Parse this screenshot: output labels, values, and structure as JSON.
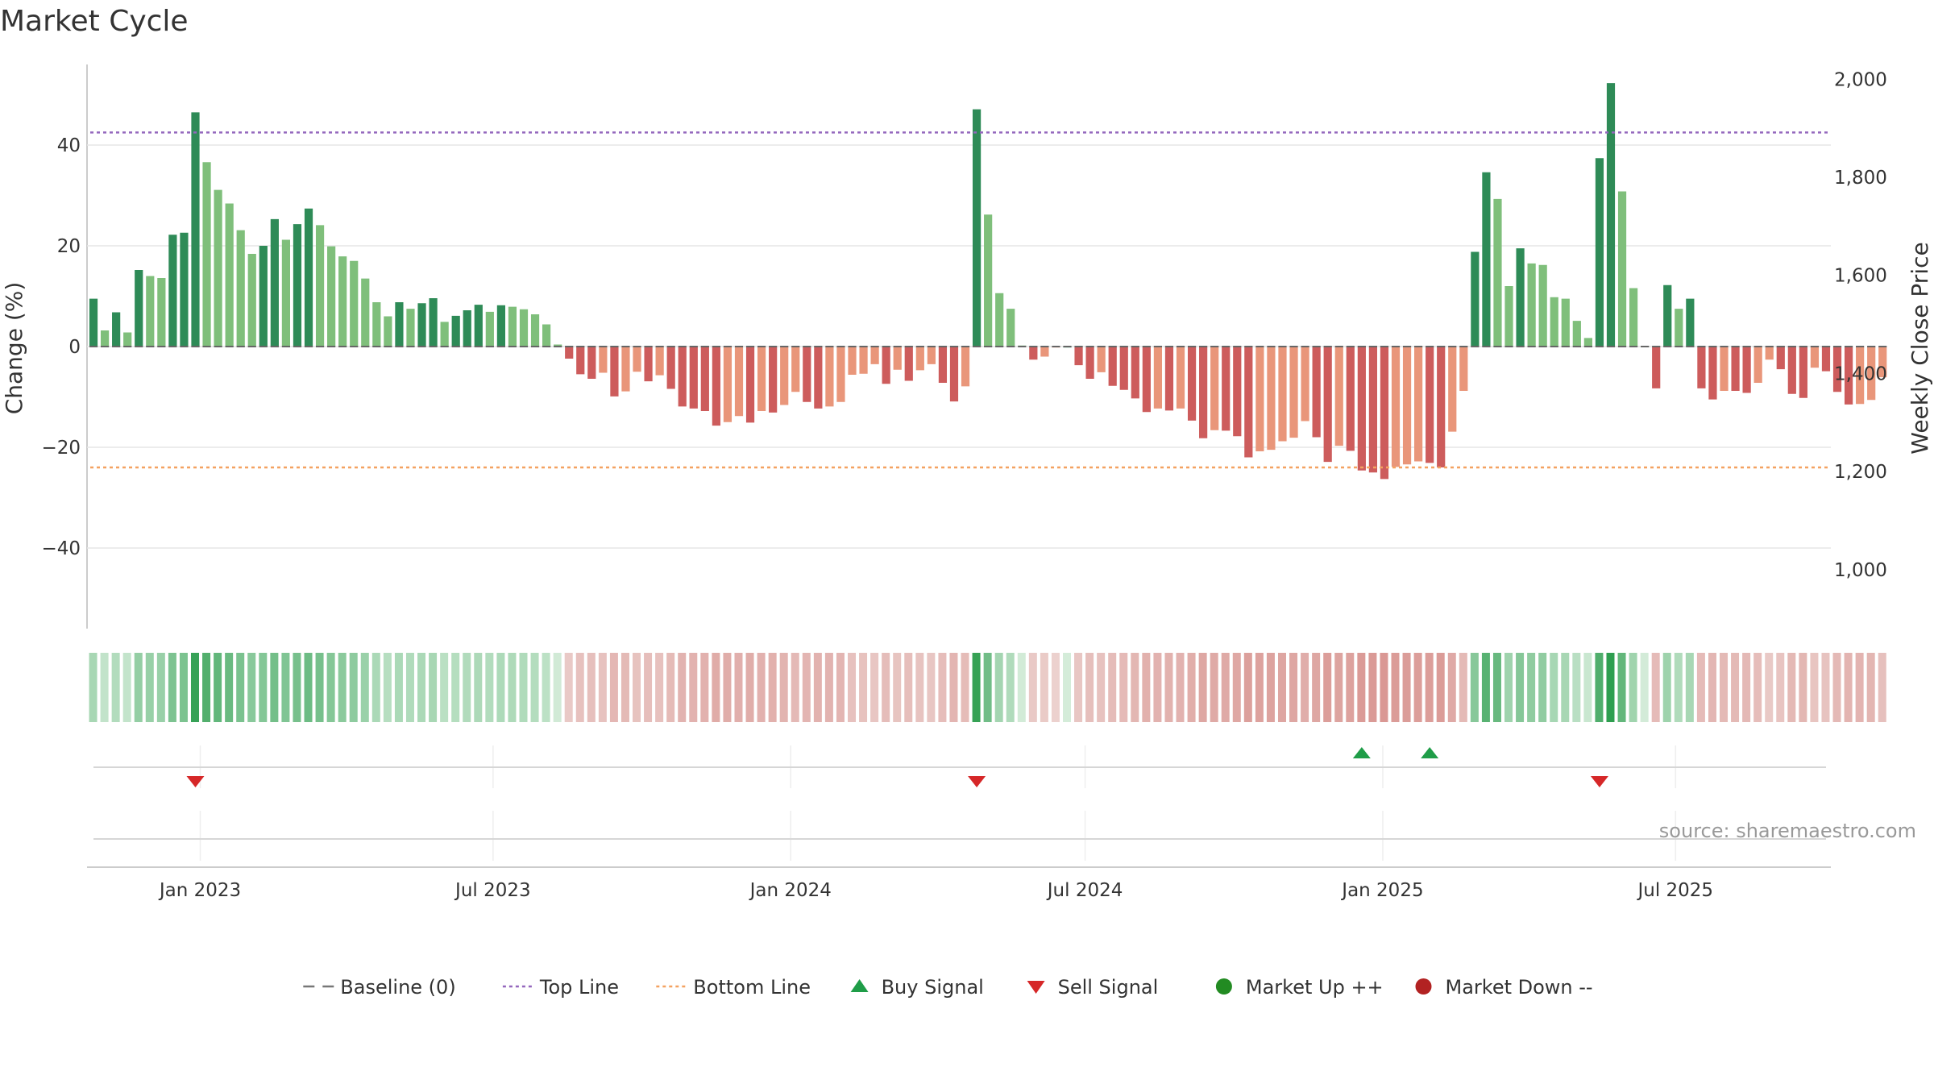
{
  "chart_data": {
    "type": "bar",
    "title": "Market Cycle",
    "ylabel": "Change (%)",
    "y2label": "Weekly Close Price",
    "ylim": [
      -56,
      56
    ],
    "y2lim": [
      880,
      2030
    ],
    "yticks": [
      -40,
      -20,
      0,
      20,
      40
    ],
    "yticklabels": [
      "−40",
      "−20",
      "0",
      "20",
      "40"
    ],
    "y2ticks": [
      1000,
      1200,
      1400,
      1600,
      1800,
      2000
    ],
    "y2ticklabels": [
      "1,000",
      "1,200",
      "1,400",
      "1,600",
      "1,800",
      "2,000"
    ],
    "x_start": "2022-10-23",
    "x_end": "2025-10-05",
    "x_ticks": [
      {
        "date": "2023-01-01",
        "label": "Jan 2023"
      },
      {
        "date": "2023-07-01",
        "label": "Jul 2023"
      },
      {
        "date": "2024-01-01",
        "label": "Jan 2024"
      },
      {
        "date": "2024-07-01",
        "label": "Jul 2024"
      },
      {
        "date": "2025-01-01",
        "label": "Jan 2025"
      },
      {
        "date": "2025-07-01",
        "label": "Jul 2025"
      }
    ],
    "first_week": "2022-10-27",
    "series": [
      {
        "name": "Change (%)",
        "values": [
          9.5,
          3.2,
          6.8,
          2.8,
          15.2,
          14.0,
          13.6,
          22.2,
          22.6,
          46.5,
          36.6,
          31.1,
          28.4,
          23.1,
          18.4,
          20.0,
          25.3,
          21.2,
          24.3,
          27.4,
          24.1,
          19.9,
          17.9,
          17.0,
          13.5,
          8.8,
          6.0,
          8.8,
          7.5,
          8.6,
          9.6,
          4.9,
          6.1,
          7.2,
          8.3,
          6.9,
          8.2,
          7.9,
          7.4,
          6.4,
          4.4,
          0.4,
          -2.4,
          -5.5,
          -6.4,
          -5.2,
          -9.9,
          -8.9,
          -5.0,
          -6.9,
          -5.7,
          -8.4,
          -11.9,
          -12.3,
          -12.8,
          -15.7,
          -15.0,
          -13.8,
          -15.1,
          -12.8,
          -13.1,
          -11.6,
          -9.0,
          -11.0,
          -12.3,
          -11.9,
          -11.0,
          -5.6,
          -5.4,
          -3.5,
          -7.4,
          -4.6,
          -6.8,
          -4.7,
          -3.5,
          -7.2,
          -10.9,
          -7.9,
          47.1,
          26.2,
          10.6,
          7.5,
          0.2,
          -2.6,
          -2.0,
          -0.1,
          0.0,
          -3.7,
          -6.4,
          -5.1,
          -7.8,
          -8.6,
          -10.3,
          -13.0,
          -12.3,
          -12.7,
          -12.3,
          -14.7,
          -18.2,
          -16.6,
          -16.7,
          -17.8,
          -22.0,
          -20.8,
          -20.5,
          -18.8,
          -18.1,
          -14.8,
          -18.0,
          -22.9,
          -19.7,
          -20.7,
          -24.6,
          -25.0,
          -26.3,
          -23.9,
          -23.4,
          -22.8,
          -23.1,
          -24.0,
          -16.9,
          -8.8,
          18.8,
          34.6,
          29.3,
          12.0,
          19.5,
          16.5,
          16.2,
          9.8,
          9.5,
          5.1,
          1.7,
          37.4,
          52.3,
          30.8,
          11.6,
          0.1,
          -8.3,
          12.2,
          7.5,
          9.5,
          -8.3,
          -10.5,
          -8.8,
          -8.8,
          -9.2,
          -7.2,
          -2.6,
          -4.5,
          -9.4,
          -10.2,
          -4.2,
          -4.9,
          -9.0,
          -11.5,
          -11.4,
          -10.6,
          -6.1
        ]
      }
    ],
    "top_line": 42.5,
    "bottom_line": -24.0,
    "baseline": 0,
    "sell_signal_weeks": [
      9,
      78,
      133
    ],
    "buy_signal_weeks": [
      112,
      118
    ],
    "source": "source: sharemaestro.com",
    "legend": [
      {
        "kind": "dash",
        "label": "Baseline (0)",
        "color": "#777777"
      },
      {
        "kind": "dot",
        "label": "Top Line",
        "color": "#9467bd"
      },
      {
        "kind": "dot",
        "label": "Bottom Line",
        "color": "#f4a261"
      },
      {
        "kind": "tri-up",
        "label": "Buy Signal",
        "color": "#1f9d48"
      },
      {
        "kind": "tri-down",
        "label": "Sell Signal",
        "color": "#d62728"
      },
      {
        "kind": "circle",
        "label": "Market Up ++",
        "color": "#228b22"
      },
      {
        "kind": "circle",
        "label": "Market Down --",
        "color": "#b22222"
      }
    ],
    "colors": {
      "pos_dark": "#2e8b57",
      "pos_light": "#7fbf7b",
      "neg_dark": "#cd5c5c",
      "neg_light": "#e9967a",
      "top_line": "#9467bd",
      "bottom_line": "#f4a261",
      "buy": "#1f9d48",
      "sell": "#d62728"
    }
  }
}
